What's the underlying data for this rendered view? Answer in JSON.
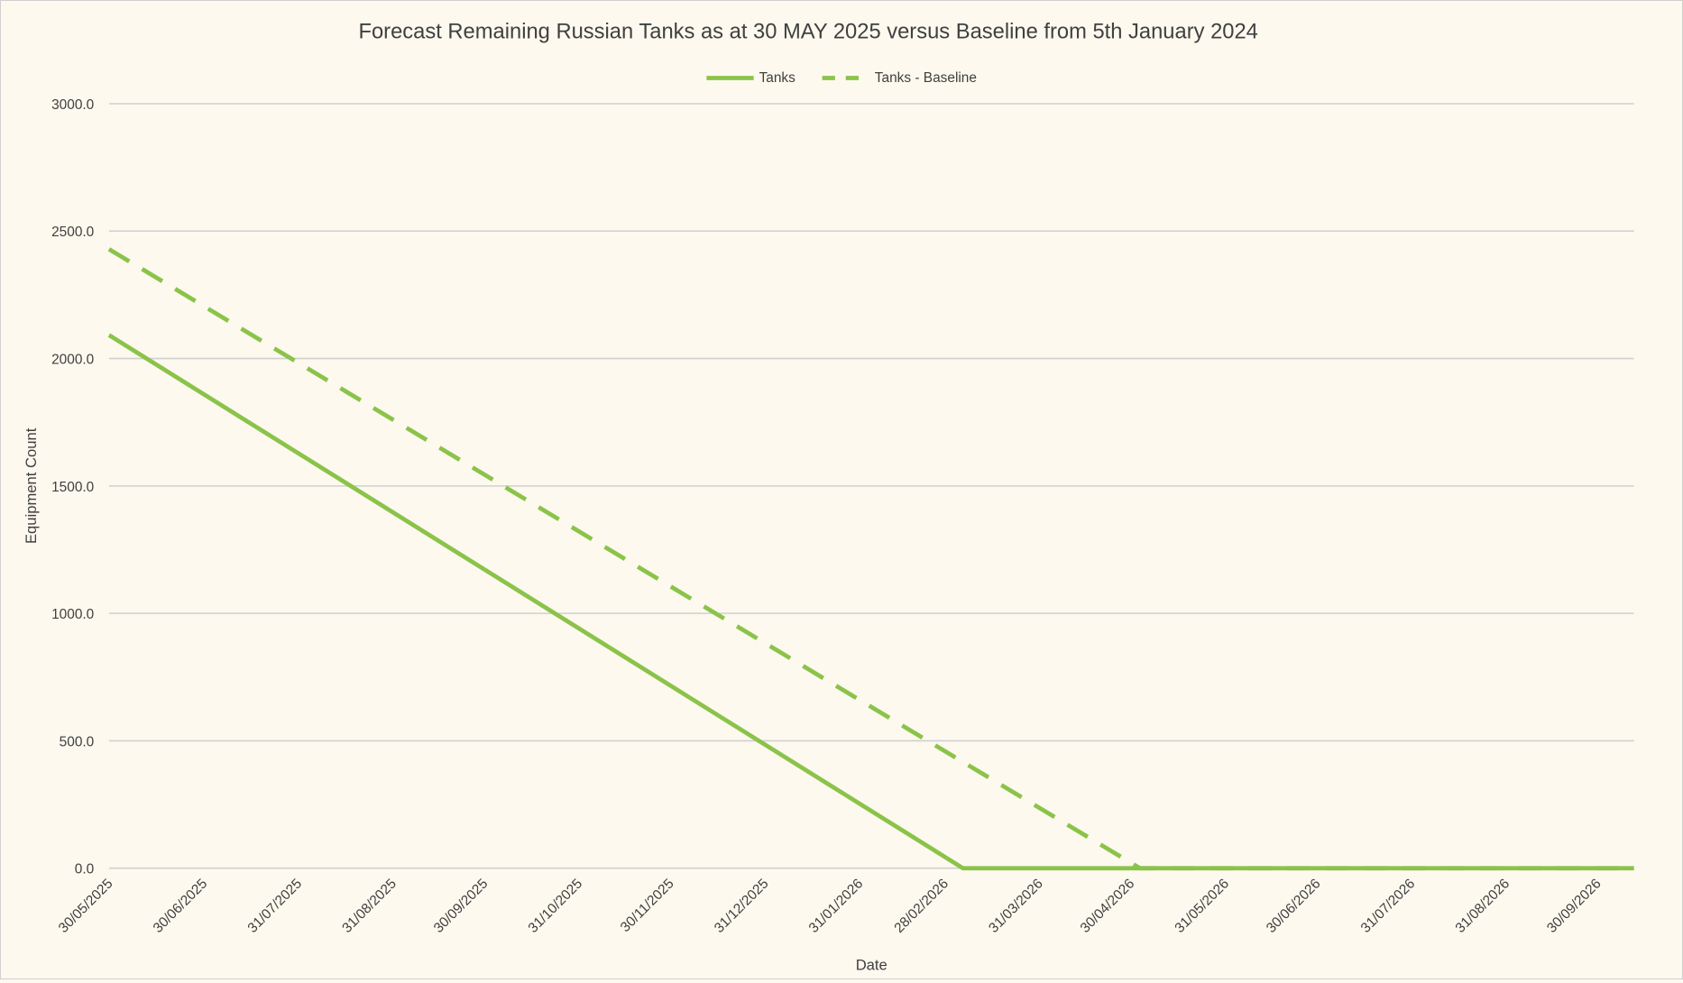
{
  "chart_data": {
    "type": "line",
    "title": "Forecast Remaining Russian Tanks as at 30 MAY 2025 versus Baseline from 5th January 2024",
    "xlabel": "Date",
    "ylabel": "Equipment Count",
    "ylim": [
      0,
      3000
    ],
    "xlim": [
      "30/05/2025",
      "12/10/2026"
    ],
    "yticks": [
      "0.0",
      "500.0",
      "1000.0",
      "1500.0",
      "2000.0",
      "2500.0",
      "3000.0"
    ],
    "ytick_values": [
      0,
      500,
      1000,
      1500,
      2000,
      2500,
      3000
    ],
    "xticks": [
      "30/05/2025",
      "30/06/2025",
      "31/07/2025",
      "31/08/2025",
      "30/09/2025",
      "31/10/2025",
      "30/11/2025",
      "31/12/2025",
      "31/01/2026",
      "28/02/2026",
      "31/03/2026",
      "30/04/2026",
      "31/05/2026",
      "30/06/2026",
      "31/07/2026",
      "31/08/2026",
      "30/09/2026"
    ],
    "grid": true,
    "legend_position": "top-center",
    "colors": {
      "line": "#8bc34a",
      "grid": "#d0d0d0",
      "background": "#fdf9ee"
    },
    "series": [
      {
        "name": "Tanks",
        "style": "solid",
        "x": [
          "30/05/2025",
          "06/03/2026",
          "12/10/2026"
        ],
        "values": [
          2092,
          0,
          0
        ]
      },
      {
        "name": "Tanks - Baseline",
        "style": "dashed",
        "x": [
          "30/05/2025",
          "03/05/2026",
          "12/10/2026"
        ],
        "values": [
          2429,
          0,
          0
        ]
      }
    ]
  }
}
